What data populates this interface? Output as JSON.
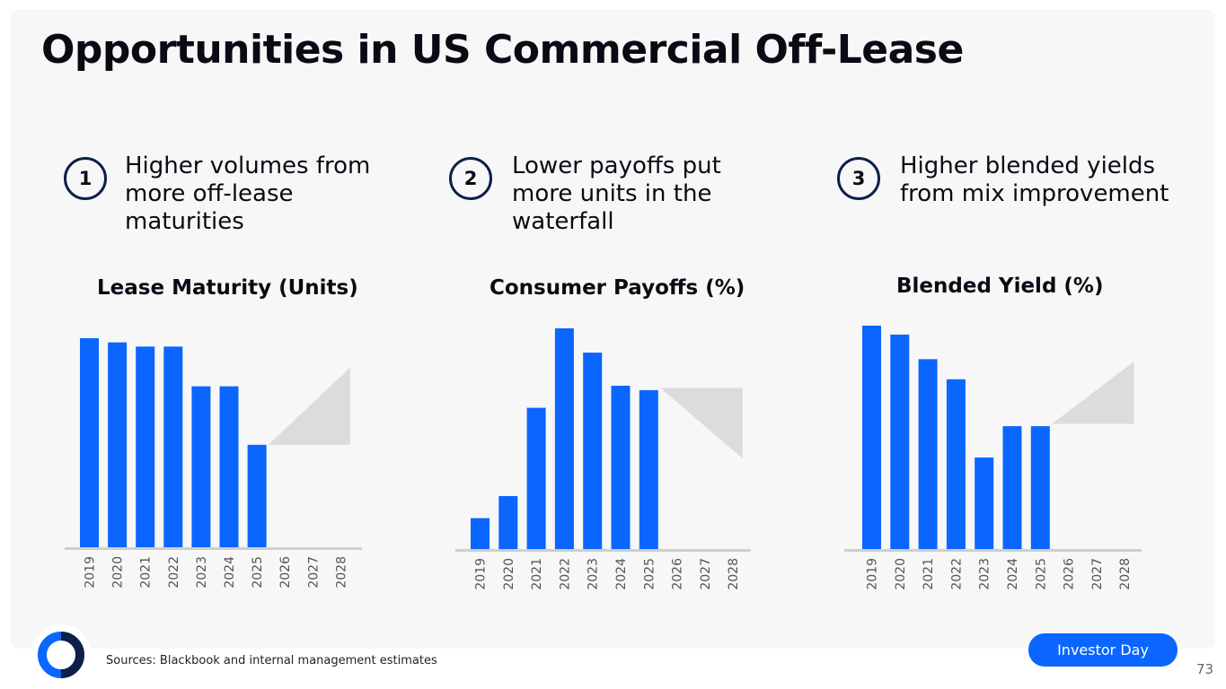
{
  "title": "Opportunities in US Commercial Off-Lease",
  "points": [
    {
      "number": "1",
      "text": "Higher volumes from more off-lease maturities"
    },
    {
      "number": "2",
      "text": "Lower payoffs put more units in the waterfall"
    },
    {
      "number": "3",
      "text": "Higher blended yields from mix improvement"
    }
  ],
  "colors": {
    "bar": "#0a66ff",
    "projection": "#dcdcdc",
    "axis": "#cfcfcf",
    "ring": "#0d1f4a"
  },
  "chart_data": [
    {
      "type": "bar",
      "title": "Lease Maturity (Units)",
      "categories": [
        "2019",
        "2020",
        "2021",
        "2022",
        "2023",
        "2024",
        "2025",
        "2026",
        "2027",
        "2028"
      ],
      "values": [
        100,
        98,
        96,
        96,
        77,
        77,
        49,
        null,
        null,
        null
      ],
      "projection": {
        "from_category": "2026",
        "to_category": "2028",
        "start_value": 49,
        "end_value": 86,
        "direction": "up"
      },
      "ylim": [
        0,
        100
      ],
      "xlabel": "",
      "ylabel": ""
    },
    {
      "type": "bar",
      "title": "Consumer Payoffs (%)",
      "categories": [
        "2019",
        "2020",
        "2021",
        "2022",
        "2023",
        "2024",
        "2025",
        "2026",
        "2027",
        "2028"
      ],
      "values": [
        14,
        24,
        64,
        100,
        89,
        74,
        72,
        null,
        null,
        null
      ],
      "projection": {
        "from_category": "2026",
        "to_category": "2028",
        "start_value": 73,
        "end_value": 41,
        "direction": "down"
      },
      "ylim": [
        0,
        100
      ],
      "xlabel": "",
      "ylabel": ""
    },
    {
      "type": "bar",
      "title": "Blended Yield (%)",
      "categories": [
        "2019",
        "2020",
        "2021",
        "2022",
        "2023",
        "2024",
        "2025",
        "2026",
        "2027",
        "2028"
      ],
      "values": [
        100,
        96,
        85,
        76,
        41,
        55,
        55,
        null,
        null,
        null
      ],
      "projection": {
        "from_category": "2026",
        "to_category": "2028",
        "start_value": 56,
        "end_value": 84,
        "direction": "up"
      },
      "ylim": [
        0,
        100
      ],
      "xlabel": "",
      "ylabel": ""
    }
  ],
  "footer": {
    "source": "Sources: Blackbook and internal management estimates",
    "badge": "Investor Day",
    "page_number": "73"
  }
}
